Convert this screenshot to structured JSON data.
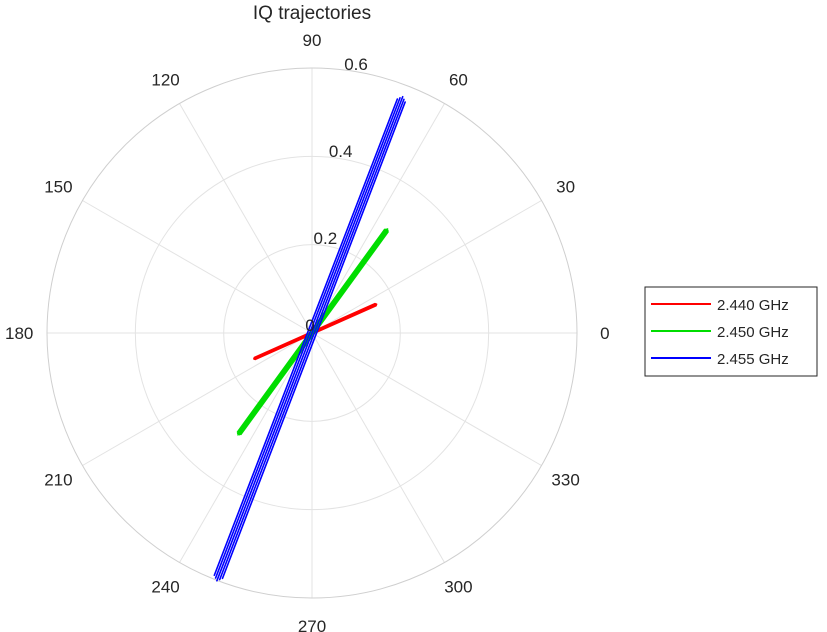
{
  "chart_data": {
    "type": "polar-line",
    "title": "IQ trajectories",
    "angle_ticks": [
      "0",
      "30",
      "60",
      "90",
      "120",
      "150",
      "180",
      "210",
      "240",
      "270",
      "300",
      "330"
    ],
    "angle_tick_values_deg": [
      0,
      30,
      60,
      90,
      120,
      150,
      180,
      210,
      240,
      270,
      300,
      330
    ],
    "radius_tick_labels": [
      "0",
      "0.2",
      "0.4",
      "0.6"
    ],
    "radius_tick_values": [
      0,
      0.2,
      0.4,
      0.6
    ],
    "rlim": [
      0,
      0.6
    ],
    "grid": true,
    "legend_position": "right",
    "series": [
      {
        "name": "2.440 GHz",
        "color": "#ff0000",
        "trajectory": [
          {
            "angle_deg": 24,
            "r": 0.16
          },
          {
            "angle_deg": 204,
            "r": 0.144
          }
        ]
      },
      {
        "name": "2.450 GHz",
        "color": "#00dd00",
        "trajectory": [
          {
            "angle_deg": 54,
            "r": 0.291
          },
          {
            "angle_deg": 234,
            "r": 0.285
          }
        ]
      },
      {
        "name": "2.455 GHz",
        "color": "#0000ff",
        "trajectory": [
          {
            "angle_deg": 69,
            "r": 0.573
          },
          {
            "angle_deg": 249,
            "r": 0.601
          }
        ]
      }
    ]
  }
}
